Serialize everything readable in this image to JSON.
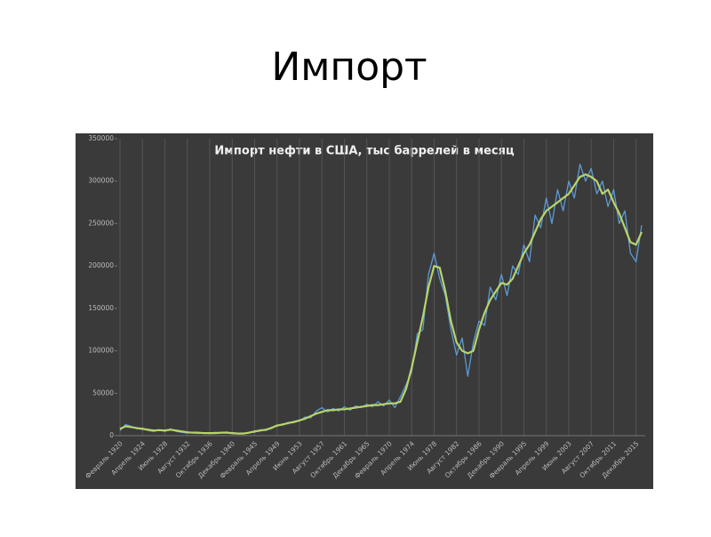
{
  "page_title": "Импорт",
  "chart_data": {
    "type": "line",
    "title": "Импорт нефти в США, тыс баррелей в месяц",
    "categories": [
      "Февраль 1920",
      null,
      null,
      null,
      "Апрель 1924",
      null,
      null,
      null,
      "Июнь 1928",
      null,
      null,
      null,
      "Август 1932",
      null,
      null,
      null,
      "Октябрь 1936",
      null,
      null,
      null,
      "Декабрь 1940",
      null,
      null,
      null,
      "Февраль 1945",
      null,
      null,
      null,
      "Апрель 1949",
      null,
      null,
      null,
      "Июнь 1953",
      null,
      null,
      null,
      "Август 1957",
      null,
      null,
      null,
      "Октябрь 1961",
      null,
      null,
      null,
      "Декабрь 1965",
      null,
      null,
      null,
      "Февраль 1970",
      null,
      null,
      null,
      "Апрель 1974",
      null,
      null,
      null,
      "Июнь 1978",
      null,
      null,
      null,
      "Август 1982",
      null,
      null,
      null,
      "Октябрь 1986",
      null,
      null,
      null,
      "Декабрь 1990",
      null,
      null,
      null,
      "Февраль 1995",
      null,
      null,
      null,
      "Апрель 1999",
      null,
      null,
      null,
      "Июнь 2003",
      null,
      null,
      null,
      "Август 2007",
      null,
      null,
      null,
      "Октябрь 2011",
      null,
      null,
      null,
      "Декабрь 2015",
      null
    ],
    "series": [
      {
        "color": "#5b9bd5",
        "values": [
          6000,
          13000,
          11000,
          8000,
          9000,
          6000,
          5000,
          7000,
          5000,
          8000,
          5000,
          4000,
          3000,
          4000,
          2500,
          3500,
          2500,
          4000,
          3000,
          4500,
          2500,
          3000,
          2000,
          4000,
          4000,
          7000,
          6000,
          10000,
          11000,
          14000,
          14000,
          17000,
          17000,
          22000,
          21000,
          29000,
          33000,
          28000,
          32000,
          29000,
          34000,
          30000,
          35000,
          33000,
          37000,
          34000,
          40000,
          35000,
          42000,
          33000,
          46000,
          60000,
          75000,
          120000,
          125000,
          190000,
          215000,
          185000,
          165000,
          125000,
          95000,
          115000,
          70000,
          110000,
          135000,
          130000,
          175000,
          160000,
          190000,
          165000,
          200000,
          190000,
          225000,
          205000,
          260000,
          245000,
          280000,
          250000,
          290000,
          265000,
          300000,
          280000,
          320000,
          300000,
          315000,
          285000,
          300000,
          270000,
          290000,
          250000,
          265000,
          215000,
          205000,
          248000
        ]
      },
      {
        "color": "#b8d46a",
        "values": [
          8000,
          11000,
          10000,
          9000,
          8000,
          7000,
          6000,
          6500,
          6000,
          7000,
          6000,
          5000,
          4000,
          3500,
          3500,
          3000,
          3000,
          3000,
          3500,
          3500,
          3000,
          2500,
          2500,
          3500,
          5000,
          6000,
          7000,
          9000,
          12000,
          13000,
          15000,
          16000,
          18000,
          20000,
          23000,
          26000,
          28000,
          30000,
          30000,
          31000,
          31000,
          32000,
          33000,
          34000,
          35000,
          36000,
          36000,
          37000,
          38000,
          38000,
          40000,
          55000,
          80000,
          110000,
          140000,
          175000,
          200000,
          198000,
          170000,
          135000,
          110000,
          100000,
          97000,
          100000,
          125000,
          145000,
          160000,
          170000,
          180000,
          178000,
          185000,
          200000,
          215000,
          225000,
          240000,
          255000,
          265000,
          270000,
          275000,
          280000,
          285000,
          295000,
          305000,
          308000,
          305000,
          300000,
          285000,
          290000,
          275000,
          262000,
          245000,
          228000,
          225000,
          240000
        ]
      }
    ],
    "ylim": [
      0,
      350000
    ],
    "yticks": [
      0,
      50000,
      100000,
      150000,
      200000,
      250000,
      300000,
      350000
    ],
    "grid": "x"
  }
}
